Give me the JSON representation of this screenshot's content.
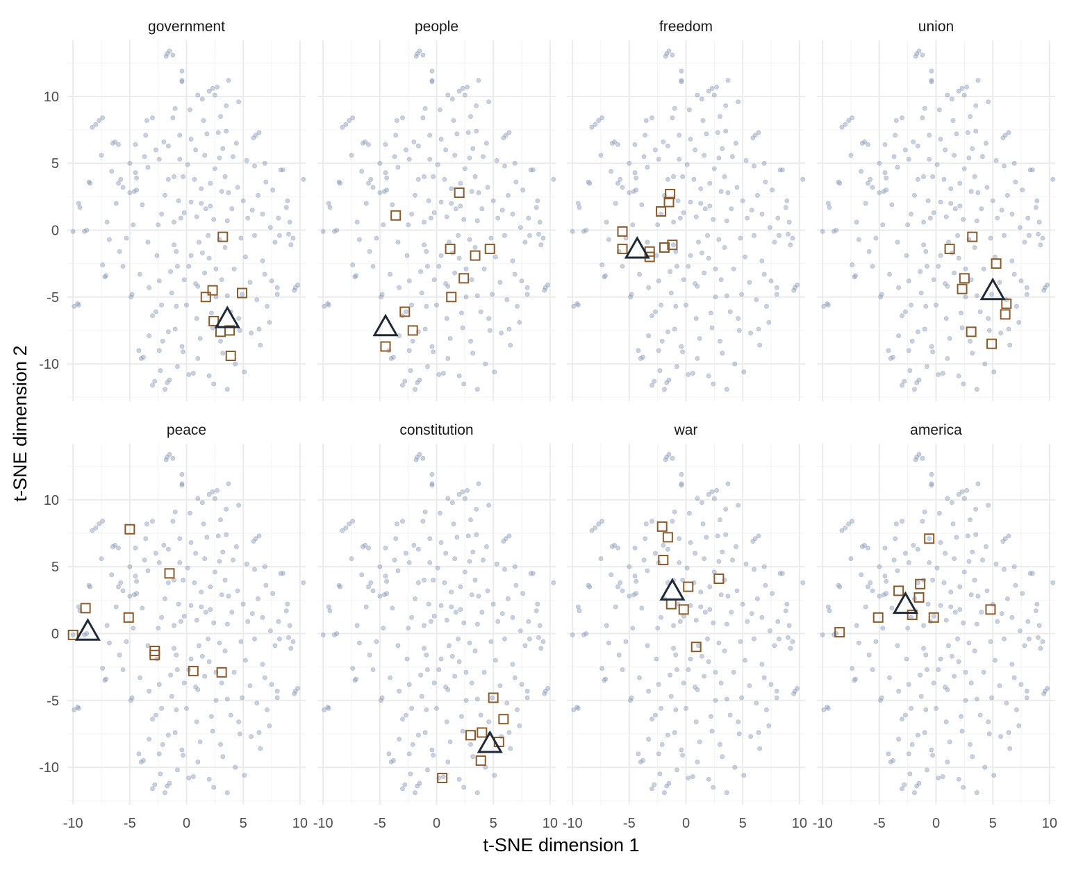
{
  "colors": {
    "background": "#ffffff",
    "grid_major": "#ebebeb",
    "grid_minor": "#f4f4f4",
    "background_points": "#8a9ab5",
    "neighbor_squares": "#8b5a2b",
    "target_triangle": "#1f2a38",
    "strip_text": "#1a1a1a",
    "tick_text": "#4d4d4d"
  },
  "chart_data": {
    "type": "scatter",
    "layout": "facet grid, 2 rows x 4 columns, shared axes",
    "xlabel": "t-SNE dimension 1",
    "ylabel": "t-SNE dimension 2",
    "xlim": [
      -10.5,
      10.5
    ],
    "ylim": [
      -12.8,
      14.2
    ],
    "x_ticks": [
      -10,
      -5,
      0,
      5,
      10
    ],
    "x_tick_labels": [
      "-10",
      "-5",
      "0",
      "5",
      "10"
    ],
    "y_ticks": [
      -10,
      -5,
      0,
      5,
      10
    ],
    "y_tick_labels": [
      "-10",
      "-5",
      "0",
      "5",
      "10"
    ],
    "grid": true,
    "legend": "none",
    "marker_meaning": {
      "circle": "all words (semi-transparent background points)",
      "triangle": "facet target word",
      "square": "nearest neighbor words"
    },
    "background_points": [
      [
        -10.0,
        -0.1
      ],
      [
        -9.9,
        -5.7
      ],
      [
        -9.6,
        -5.5
      ],
      [
        -9.5,
        -5.6
      ],
      [
        -9.5,
        2.0
      ],
      [
        -9.4,
        1.7
      ],
      [
        -9.0,
        -0.1
      ],
      [
        -8.8,
        0.0
      ],
      [
        -8.6,
        3.6
      ],
      [
        -8.5,
        3.5
      ],
      [
        -8.3,
        7.7
      ],
      [
        -8.0,
        7.9
      ],
      [
        -7.7,
        8.2
      ],
      [
        -7.4,
        8.4
      ],
      [
        -7.5,
        5.6
      ],
      [
        -7.4,
        -2.6
      ],
      [
        -7.2,
        -3.5
      ],
      [
        -7.1,
        -3.4
      ],
      [
        -6.8,
        -0.7
      ],
      [
        -6.6,
        4.4
      ],
      [
        -6.5,
        6.5
      ],
      [
        -6.3,
        6.6
      ],
      [
        -6.0,
        6.4
      ],
      [
        -6.0,
        3.5
      ],
      [
        -5.8,
        3.8
      ],
      [
        -5.6,
        3.2
      ],
      [
        -5.3,
        -0.6
      ],
      [
        -5.0,
        5.0
      ],
      [
        -5.0,
        2.8
      ],
      [
        -4.9,
        -5.0
      ],
      [
        -4.8,
        -4.8
      ],
      [
        -4.7,
        0.4
      ],
      [
        -4.6,
        2.9
      ],
      [
        -4.5,
        4.3
      ],
      [
        -4.5,
        6.4
      ],
      [
        -4.4,
        3.0
      ],
      [
        -4.4,
        3.9
      ],
      [
        -4.2,
        -9.0
      ],
      [
        -4.0,
        -9.6
      ],
      [
        -3.8,
        -9.5
      ],
      [
        -3.7,
        5.5
      ],
      [
        -3.6,
        7.1
      ],
      [
        -3.5,
        8.2
      ],
      [
        -3.4,
        4.7
      ],
      [
        -3.4,
        -0.9
      ],
      [
        -3.3,
        -7.9
      ],
      [
        -3.3,
        -4.3
      ],
      [
        -3.0,
        -11.6
      ],
      [
        -3.0,
        8.4
      ],
      [
        -2.8,
        -11.3
      ],
      [
        -2.7,
        6.0
      ],
      [
        -2.7,
        -6.1
      ],
      [
        -2.6,
        -1.9
      ],
      [
        -2.5,
        0.4
      ],
      [
        -2.4,
        5.3
      ],
      [
        -2.4,
        -3.8
      ],
      [
        -2.4,
        -9.0
      ],
      [
        -2.3,
        -10.5
      ],
      [
        -2.2,
        -5.6
      ],
      [
        -2.2,
        1.2
      ],
      [
        -2.1,
        -8.3
      ],
      [
        -2.0,
        6.6
      ],
      [
        -1.9,
        2.6
      ],
      [
        -1.9,
        -11.9
      ],
      [
        -1.8,
        13.0
      ],
      [
        -1.7,
        13.2
      ],
      [
        -1.7,
        -11.4
      ],
      [
        -1.6,
        -7.6
      ],
      [
        -1.6,
        3.8
      ],
      [
        -1.6,
        6.3
      ],
      [
        -1.5,
        -11.2
      ],
      [
        -1.5,
        13.4
      ],
      [
        -1.4,
        -3.1
      ],
      [
        -1.3,
        -4.7
      ],
      [
        -1.2,
        8.4
      ],
      [
        -1.2,
        13.1
      ],
      [
        -1.1,
        -1.1
      ],
      [
        -1.1,
        0.6
      ],
      [
        -1.1,
        4.0
      ],
      [
        -1.0,
        -7.4
      ],
      [
        -0.9,
        -5.7
      ],
      [
        -0.9,
        -1.6
      ],
      [
        -0.8,
        -10.2
      ],
      [
        -0.8,
        -2.7
      ],
      [
        -0.7,
        2.2
      ],
      [
        -0.6,
        7.1
      ],
      [
        -0.6,
        5.3
      ],
      [
        -0.5,
        0.9
      ],
      [
        -0.4,
        11.9
      ],
      [
        -0.4,
        11.2
      ],
      [
        -0.4,
        11.1
      ],
      [
        -0.3,
        -9.1
      ],
      [
        -0.2,
        1.3
      ],
      [
        -0.2,
        -3.7
      ],
      [
        0.0,
        -5.6
      ],
      [
        0.1,
        4.9
      ],
      [
        0.2,
        -2.7
      ],
      [
        0.2,
        -10.8
      ],
      [
        0.4,
        2.1
      ],
      [
        0.4,
        6.8
      ],
      [
        0.4,
        -1.9
      ],
      [
        0.6,
        -10.7
      ],
      [
        0.7,
        3.8
      ],
      [
        0.8,
        -4.0
      ],
      [
        0.8,
        6.0
      ],
      [
        0.9,
        1.0
      ],
      [
        1.0,
        10.1
      ],
      [
        1.0,
        -4.2
      ],
      [
        1.1,
        -0.9
      ],
      [
        1.2,
        -8.1
      ],
      [
        1.3,
        2.0
      ],
      [
        1.3,
        3.1
      ],
      [
        1.4,
        9.8
      ],
      [
        1.4,
        -1.7
      ],
      [
        1.6,
        -3.2
      ],
      [
        1.6,
        5.6
      ],
      [
        1.7,
        1.6
      ],
      [
        1.8,
        7.2
      ],
      [
        1.9,
        -0.4
      ],
      [
        2.0,
        -2.1
      ],
      [
        2.0,
        10.4
      ],
      [
        2.0,
        -10.9
      ],
      [
        2.1,
        3.5
      ],
      [
        2.1,
        1.8
      ],
      [
        2.2,
        -6.2
      ],
      [
        2.3,
        10.6
      ],
      [
        2.3,
        -7.3
      ],
      [
        2.4,
        0.8
      ],
      [
        2.5,
        10.1
      ],
      [
        2.5,
        4.6
      ],
      [
        2.6,
        -5.0
      ],
      [
        2.6,
        -2.9
      ],
      [
        2.7,
        10.7
      ],
      [
        2.8,
        7.3
      ],
      [
        2.9,
        -0.7
      ],
      [
        2.9,
        5.4
      ],
      [
        3.0,
        -8.3
      ],
      [
        3.1,
        2.9
      ],
      [
        3.1,
        -3.7
      ],
      [
        3.2,
        -9.2
      ],
      [
        3.2,
        6.1
      ],
      [
        3.4,
        4.0
      ],
      [
        3.4,
        -1.3
      ],
      [
        3.5,
        9.3
      ],
      [
        3.5,
        7.4
      ],
      [
        3.6,
        -4.9
      ],
      [
        3.6,
        -11.9
      ],
      [
        3.6,
        0.7
      ],
      [
        3.7,
        2.8
      ],
      [
        3.7,
        11.2
      ],
      [
        3.9,
        -6.1
      ],
      [
        4.0,
        1.6
      ],
      [
        4.1,
        5.5
      ],
      [
        4.2,
        -2.9
      ],
      [
        4.3,
        -10.0
      ],
      [
        4.4,
        6.5
      ],
      [
        4.5,
        3.2
      ],
      [
        4.6,
        -6.6
      ],
      [
        4.7,
        -7.5
      ],
      [
        4.8,
        -0.6
      ],
      [
        4.9,
        -4.8
      ],
      [
        5.0,
        2.2
      ],
      [
        5.1,
        -10.6
      ],
      [
        5.3,
        5.2
      ],
      [
        5.4,
        0.9
      ],
      [
        5.6,
        -3.9
      ],
      [
        5.7,
        -7.7
      ],
      [
        5.9,
        6.9
      ],
      [
        6.0,
        -0.4
      ],
      [
        6.0,
        4.8
      ],
      [
        6.1,
        7.1
      ],
      [
        6.2,
        -5.2
      ],
      [
        6.3,
        2.6
      ],
      [
        6.4,
        -7.4
      ],
      [
        6.4,
        7.3
      ],
      [
        6.5,
        -8.6
      ],
      [
        6.7,
        -2.3
      ],
      [
        6.7,
        1.2
      ],
      [
        6.9,
        -3.3
      ],
      [
        7.0,
        3.6
      ],
      [
        7.1,
        -5.7
      ],
      [
        7.3,
        -6.9
      ],
      [
        7.5,
        -3.8
      ],
      [
        7.6,
        3.0
      ],
      [
        7.8,
        -0.9
      ],
      [
        8.0,
        -4.8
      ],
      [
        8.0,
        -4.3
      ],
      [
        8.1,
        0.9
      ],
      [
        8.2,
        -0.4
      ],
      [
        8.3,
        4.5
      ],
      [
        8.5,
        4.5
      ],
      [
        8.8,
        1.7
      ],
      [
        8.9,
        2.2
      ],
      [
        9.0,
        -0.3
      ],
      [
        9.1,
        0.6
      ],
      [
        9.2,
        -1.1
      ],
      [
        9.4,
        -0.6
      ],
      [
        9.5,
        -4.5
      ],
      [
        9.6,
        -4.3
      ],
      [
        9.8,
        -4.1
      ],
      [
        10.3,
        3.8
      ],
      [
        7.4,
        0.2
      ],
      [
        5.8,
        1.5
      ],
      [
        -3.0,
        -6.4
      ],
      [
        -5.9,
        -1.6
      ],
      [
        -4.1,
        -3.3
      ],
      [
        0.9,
        -6.6
      ],
      [
        1.5,
        8.2
      ],
      [
        -0.4,
        -8.7
      ],
      [
        4.6,
        9.6
      ],
      [
        3.0,
        8.5
      ],
      [
        -6.2,
        2.0
      ],
      [
        -7.0,
        0.6
      ],
      [
        -1.0,
        9.1
      ],
      [
        2.4,
        -11.5
      ],
      [
        0.3,
        9.0
      ],
      [
        -5.6,
        -2.7
      ],
      [
        -3.9,
        1.9
      ],
      [
        -0.3,
        4.0
      ],
      [
        6.9,
        5.0
      ],
      [
        5.2,
        -2.0
      ],
      [
        1.0,
        -9.6
      ]
    ],
    "facets": [
      {
        "title": "government",
        "target": [
          3.6,
          -6.7
        ],
        "neighbors": [
          [
            3.2,
            -0.5
          ],
          [
            2.3,
            -4.5
          ],
          [
            1.7,
            -5.0
          ],
          [
            4.9,
            -4.7
          ],
          [
            2.4,
            -6.8
          ],
          [
            3.0,
            -7.6
          ],
          [
            3.8,
            -7.5
          ],
          [
            3.9,
            -9.4
          ]
        ]
      },
      {
        "title": "people",
        "target": [
          -4.5,
          -7.3
        ],
        "neighbors": [
          [
            -3.6,
            1.1
          ],
          [
            2.0,
            2.8
          ],
          [
            1.2,
            -1.4
          ],
          [
            3.4,
            -1.9
          ],
          [
            4.7,
            -1.4
          ],
          [
            2.4,
            -3.6
          ],
          [
            1.3,
            -5.0
          ],
          [
            -2.8,
            -6.1
          ],
          [
            -2.1,
            -7.5
          ],
          [
            -4.5,
            -8.7
          ]
        ]
      },
      {
        "title": "freedom",
        "target": [
          -4.3,
          -1.5
        ],
        "neighbors": [
          [
            -1.4,
            2.7
          ],
          [
            -1.5,
            2.1
          ],
          [
            -2.2,
            1.4
          ],
          [
            -5.6,
            -0.1
          ],
          [
            -5.6,
            -1.4
          ],
          [
            -3.2,
            -1.6
          ],
          [
            -3.2,
            -2.0
          ],
          [
            -1.9,
            -1.3
          ],
          [
            -1.2,
            -1.1
          ]
        ]
      },
      {
        "title": "union",
        "target": [
          5.0,
          -4.6
        ],
        "neighbors": [
          [
            3.2,
            -0.5
          ],
          [
            1.2,
            -1.4
          ],
          [
            5.3,
            -2.5
          ],
          [
            2.5,
            -3.6
          ],
          [
            2.3,
            -4.4
          ],
          [
            6.2,
            -5.5
          ],
          [
            6.1,
            -6.3
          ],
          [
            3.1,
            -7.6
          ],
          [
            4.9,
            -8.5
          ]
        ]
      },
      {
        "title": "peace",
        "target": [
          -8.7,
          0.1
        ],
        "neighbors": [
          [
            -10.0,
            -0.1
          ],
          [
            -8.9,
            1.9
          ],
          [
            -5.0,
            7.8
          ],
          [
            -1.5,
            4.5
          ],
          [
            -5.1,
            1.2
          ],
          [
            -2.8,
            -1.3
          ],
          [
            -2.8,
            -1.6
          ],
          [
            0.6,
            -2.8
          ],
          [
            3.1,
            -2.9
          ]
        ]
      },
      {
        "title": "constitution",
        "target": [
          4.7,
          -8.3
        ],
        "neighbors": [
          [
            5.0,
            -4.8
          ],
          [
            5.9,
            -6.4
          ],
          [
            3.0,
            -7.6
          ],
          [
            4.0,
            -7.4
          ],
          [
            5.5,
            -8.1
          ],
          [
            3.9,
            -9.5
          ],
          [
            0.5,
            -10.8
          ]
        ]
      },
      {
        "title": "war",
        "target": [
          -1.2,
          3.1
        ],
        "neighbors": [
          [
            -2.1,
            8.0
          ],
          [
            -1.6,
            7.2
          ],
          [
            -2.0,
            5.5
          ],
          [
            0.2,
            3.5
          ],
          [
            2.9,
            4.1
          ],
          [
            -1.3,
            2.2
          ],
          [
            -0.2,
            1.8
          ],
          [
            0.9,
            -1.0
          ]
        ]
      },
      {
        "title": "america",
        "target": [
          -2.7,
          2.1
        ],
        "neighbors": [
          [
            -0.6,
            7.1
          ],
          [
            -1.4,
            3.7
          ],
          [
            -3.3,
            3.2
          ],
          [
            -1.5,
            2.7
          ],
          [
            -2.1,
            1.4
          ],
          [
            -5.1,
            1.2
          ],
          [
            -8.5,
            0.1
          ],
          [
            -0.2,
            1.2
          ],
          [
            4.8,
            1.8
          ]
        ]
      }
    ]
  }
}
